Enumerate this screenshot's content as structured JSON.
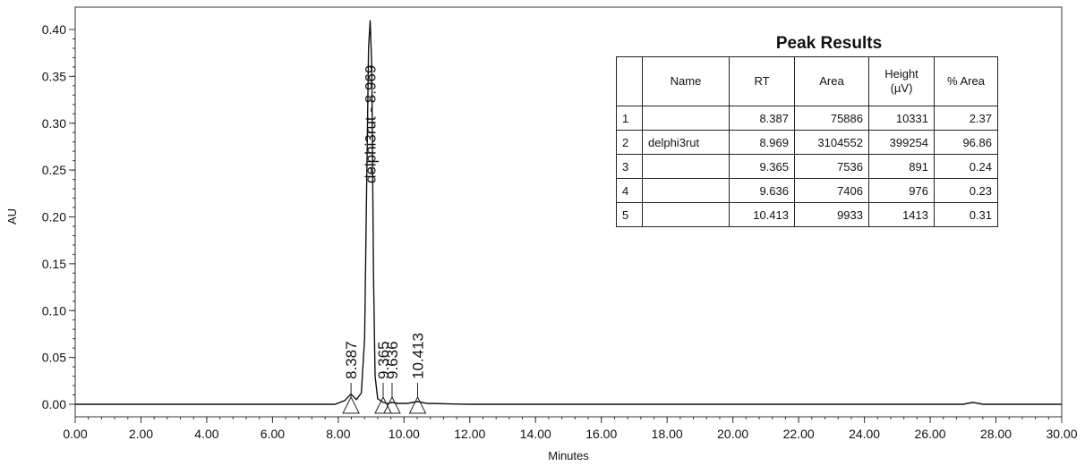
{
  "chart_data": {
    "type": "line",
    "xlabel": "Minutes",
    "ylabel": "AU",
    "xlim": [
      0,
      30
    ],
    "ylim": [
      -0.02,
      0.42
    ],
    "x_ticks": [
      "0.00",
      "2.00",
      "4.00",
      "6.00",
      "8.00",
      "10.00",
      "12.00",
      "14.00",
      "16.00",
      "18.00",
      "20.00",
      "22.00",
      "24.00",
      "26.00",
      "28.00",
      "30.00"
    ],
    "y_ticks": [
      "0.00",
      "0.05",
      "0.10",
      "0.15",
      "0.20",
      "0.25",
      "0.30",
      "0.35",
      "0.40"
    ],
    "grid": false,
    "series": [
      {
        "x": [
          0.0,
          7.9,
          8.2,
          8.387,
          8.55,
          8.7,
          8.8,
          8.87,
          8.92,
          8.969,
          9.02,
          9.07,
          9.12,
          9.2,
          9.365,
          9.5,
          9.636,
          9.8,
          10.1,
          10.413,
          10.7,
          12.0,
          20.0,
          27.0,
          27.3,
          27.6,
          30.0
        ],
        "y": [
          0.0,
          0.0,
          0.004,
          0.011,
          0.005,
          0.012,
          0.07,
          0.25,
          0.38,
          0.41,
          0.36,
          0.14,
          0.03,
          0.006,
          0.002,
          0.001,
          0.002,
          0.001,
          0.001,
          0.003,
          0.001,
          0.0,
          0.0,
          0.0,
          0.002,
          0.0,
          0.0
        ]
      }
    ],
    "peaks": [
      {
        "label": "8.387",
        "x": 8.387
      },
      {
        "label": "delphi3rut - 8.969",
        "x": 8.969
      },
      {
        "label": "9.365",
        "x": 9.365
      },
      {
        "label": "9.636",
        "x": 9.636
      },
      {
        "label": "10.413",
        "x": 10.413
      }
    ]
  },
  "peak_results": {
    "title": "Peak Results",
    "headers": [
      "",
      "Name",
      "RT",
      "Area",
      "Height\n(µV)",
      "% Area"
    ],
    "rows": [
      [
        "1",
        "",
        "8.387",
        "75886",
        "10331",
        "2.37"
      ],
      [
        "2",
        "delphi3rut",
        "8.969",
        "3104552",
        "399254",
        "96.86"
      ],
      [
        "3",
        "",
        "9.365",
        "7536",
        "891",
        "0.24"
      ],
      [
        "4",
        "",
        "9.636",
        "7406",
        "976",
        "0.23"
      ],
      [
        "5",
        "",
        "10.413",
        "9933",
        "1413",
        "0.31"
      ]
    ]
  }
}
